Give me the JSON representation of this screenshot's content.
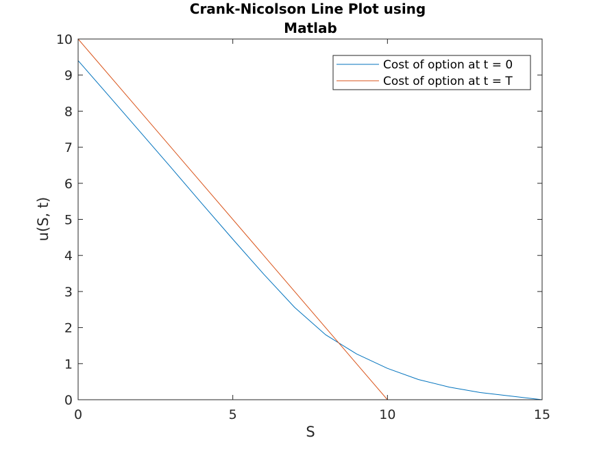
{
  "chart_data": {
    "type": "line",
    "title_lines": [
      "Crank-Nicolson Line Plot using",
      "Matlab"
    ],
    "xlabel": "S",
    "ylabel": "u(S, t)",
    "xlim": [
      0,
      15
    ],
    "ylim": [
      0,
      10
    ],
    "xticks": [
      0,
      5,
      10,
      15
    ],
    "yticks": [
      0,
      1,
      2,
      3,
      4,
      5,
      6,
      7,
      8,
      9,
      10
    ],
    "grid": false,
    "legend_position": "top-right",
    "series": [
      {
        "name": "Cost of option at t = 0",
        "color": "#0072BD",
        "x": [
          0,
          1,
          2,
          3,
          4,
          5,
          6,
          7,
          8,
          9,
          10,
          11,
          12,
          13,
          14,
          15
        ],
        "y": [
          9.4,
          8.42,
          7.43,
          6.44,
          5.44,
          4.45,
          3.48,
          2.56,
          1.8,
          1.27,
          0.87,
          0.56,
          0.35,
          0.2,
          0.1,
          0.0
        ]
      },
      {
        "name": "Cost of option at t = T",
        "color": "#D95319",
        "x": [
          0,
          10,
          15
        ],
        "y": [
          10,
          0,
          0
        ]
      }
    ]
  }
}
